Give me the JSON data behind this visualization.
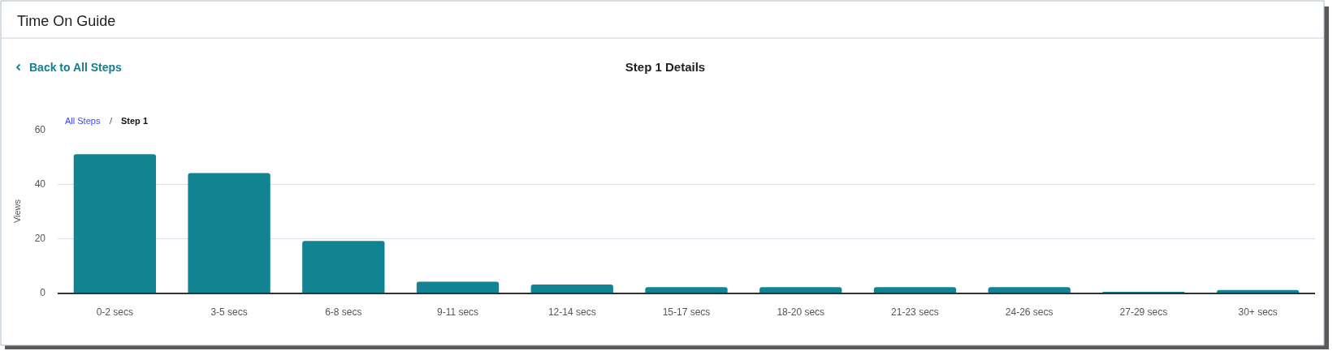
{
  "chart_data": {
    "type": "bar",
    "title": "Step 1 Details",
    "ylabel": "Views",
    "categories": [
      "0-2 secs",
      "3-5 secs",
      "6-8 secs",
      "9-11 secs",
      "12-14 secs",
      "15-17 secs",
      "18-20 secs",
      "21-23 secs",
      "24-26 secs",
      "27-29 secs",
      "30+ secs"
    ],
    "values": [
      51,
      44,
      19,
      4,
      3,
      2,
      2,
      2,
      2,
      0.3,
      1
    ],
    "color": "#128393",
    "ylim": [
      0,
      60
    ],
    "yticks": [
      0,
      20,
      40,
      60
    ],
    "grid": "y",
    "annotations": [
      "Time On Guide",
      "Back to All Steps",
      "All Steps",
      "/",
      "Step 1"
    ]
  }
}
